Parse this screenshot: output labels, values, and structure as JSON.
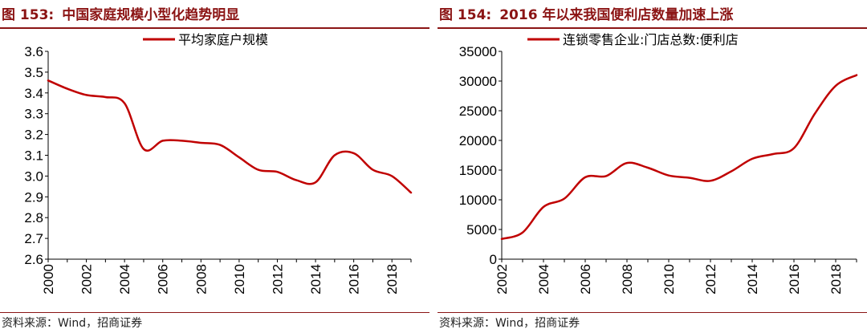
{
  "chart_data": [
    {
      "type": "line",
      "figure_label": "图 153:",
      "title": "中国家庭规模小型化趋势明显",
      "legend": "平均家庭户规模",
      "legend_position": "top",
      "source": "资料来源：Wind，招商证券",
      "xlabel": "",
      "ylabel": "",
      "xlim": [
        2000,
        2019
      ],
      "ylim": [
        2.6,
        3.6
      ],
      "y_ticks": [
        "2.6",
        "2.7",
        "2.8",
        "2.9",
        "3.0",
        "3.1",
        "3.2",
        "3.3",
        "3.4",
        "3.5",
        "3.6"
      ],
      "x_ticks": [
        "2000",
        "2002",
        "2004",
        "2006",
        "2008",
        "2010",
        "2012",
        "2014",
        "2016",
        "2018"
      ],
      "grid": false,
      "color": "#C00000",
      "series": [
        {
          "name": "平均家庭户规模",
          "x": [
            2000,
            2001,
            2002,
            2003,
            2004,
            2005,
            2006,
            2007,
            2008,
            2009,
            2010,
            2011,
            2012,
            2013,
            2014,
            2015,
            2016,
            2017,
            2018,
            2019
          ],
          "values": [
            3.46,
            3.42,
            3.39,
            3.38,
            3.35,
            3.13,
            3.17,
            3.17,
            3.16,
            3.15,
            3.09,
            3.03,
            3.02,
            2.98,
            2.97,
            3.1,
            3.11,
            3.03,
            3.0,
            2.92
          ]
        }
      ]
    },
    {
      "type": "line",
      "figure_label": "图 154:",
      "title": "2016 年以来我国便利店数量加速上涨",
      "legend": "连锁零售企业:门店总数:便利店",
      "legend_position": "top",
      "source": "资料来源：Wind，招商证券",
      "xlabel": "",
      "ylabel": "",
      "xlim": [
        2002,
        2019
      ],
      "ylim": [
        0,
        35000
      ],
      "y_ticks": [
        "0",
        "5000",
        "10000",
        "15000",
        "20000",
        "25000",
        "30000",
        "35000"
      ],
      "x_ticks": [
        "2002",
        "2004",
        "2006",
        "2008",
        "2010",
        "2012",
        "2014",
        "2016",
        "2018"
      ],
      "grid": false,
      "color": "#C00000",
      "series": [
        {
          "name": "连锁零售企业:门店总数:便利店",
          "x": [
            2002,
            2003,
            2004,
            2005,
            2006,
            2007,
            2008,
            2009,
            2010,
            2011,
            2012,
            2013,
            2014,
            2015,
            2016,
            2017,
            2018,
            2019
          ],
          "values": [
            3400,
            4500,
            8800,
            10200,
            13800,
            14000,
            16200,
            15400,
            14100,
            13700,
            13200,
            14800,
            16900,
            17700,
            18700,
            24500,
            29200,
            31000
          ]
        }
      ]
    }
  ]
}
